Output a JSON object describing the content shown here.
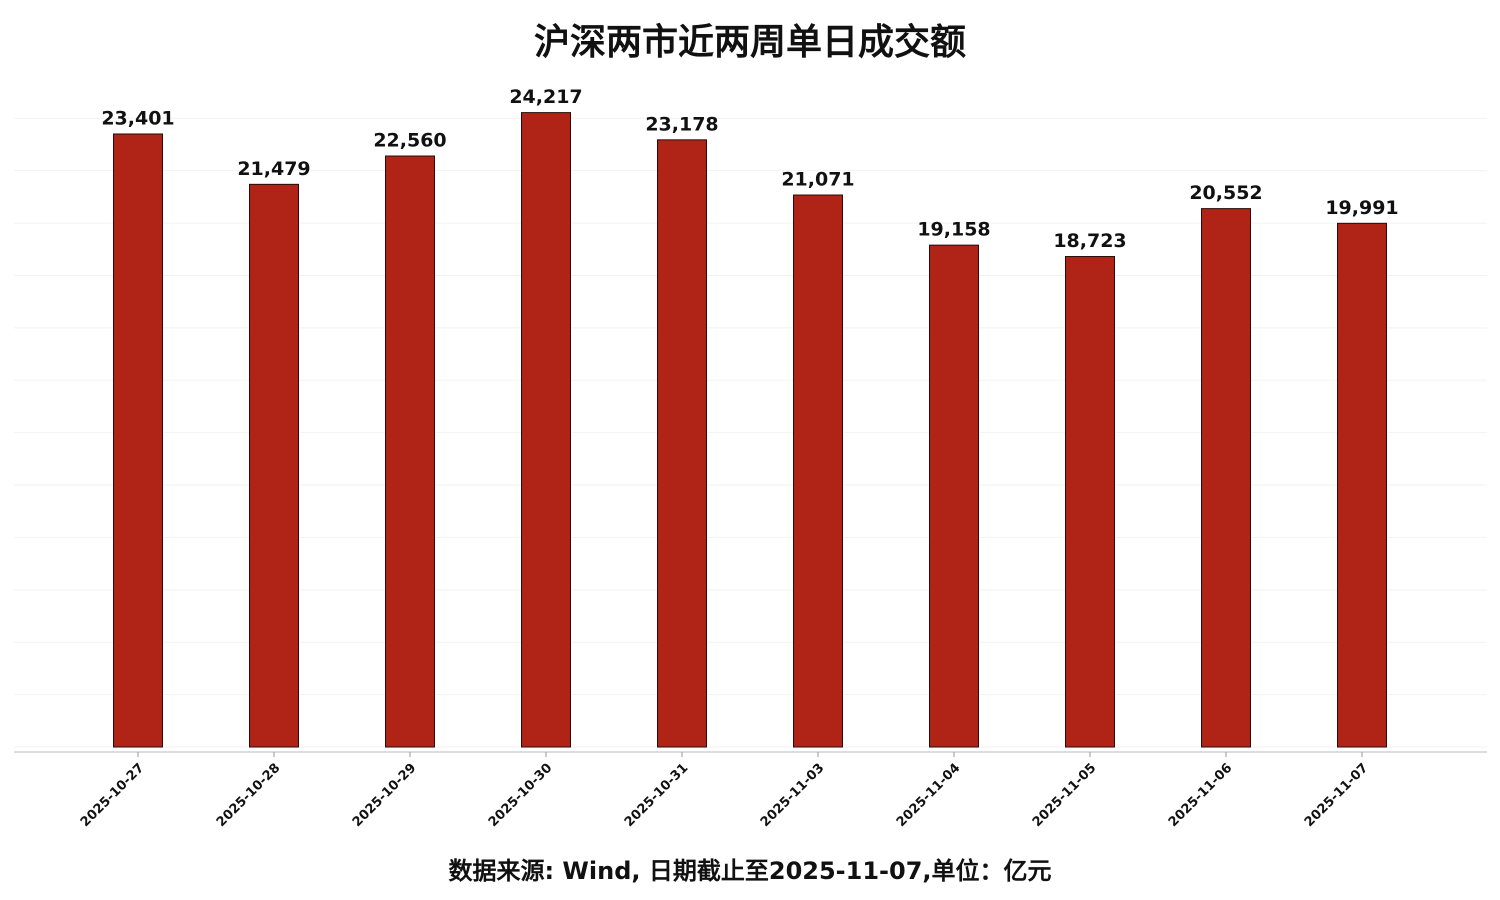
{
  "chart_data": {
    "type": "bar",
    "title": "沪深两市近两周单日成交额",
    "categories": [
      "2025-10-27",
      "2025-10-28",
      "2025-10-29",
      "2025-10-30",
      "2025-10-31",
      "2025-11-03",
      "2025-11-04",
      "2025-11-05",
      "2025-11-06",
      "2025-11-07"
    ],
    "values": [
      23401,
      21479,
      22560,
      24217,
      23178,
      21071,
      19158,
      18723,
      20552,
      19991
    ],
    "value_labels": [
      "23,401",
      "21,479",
      "22,560",
      "24,217",
      "23,178",
      "21,071",
      "19,158",
      "18,723",
      "20,552",
      "19,991"
    ],
    "color": "#b02418",
    "ylim": [
      0,
      25500
    ],
    "yticks": [
      0,
      2000,
      4000,
      6000,
      8000,
      10000,
      12000,
      14000,
      16000,
      18000,
      20000,
      22000,
      24000
    ],
    "grid": true,
    "note": "数据来源: Wind, 日期截止至2025-11-07,单位：亿元"
  }
}
